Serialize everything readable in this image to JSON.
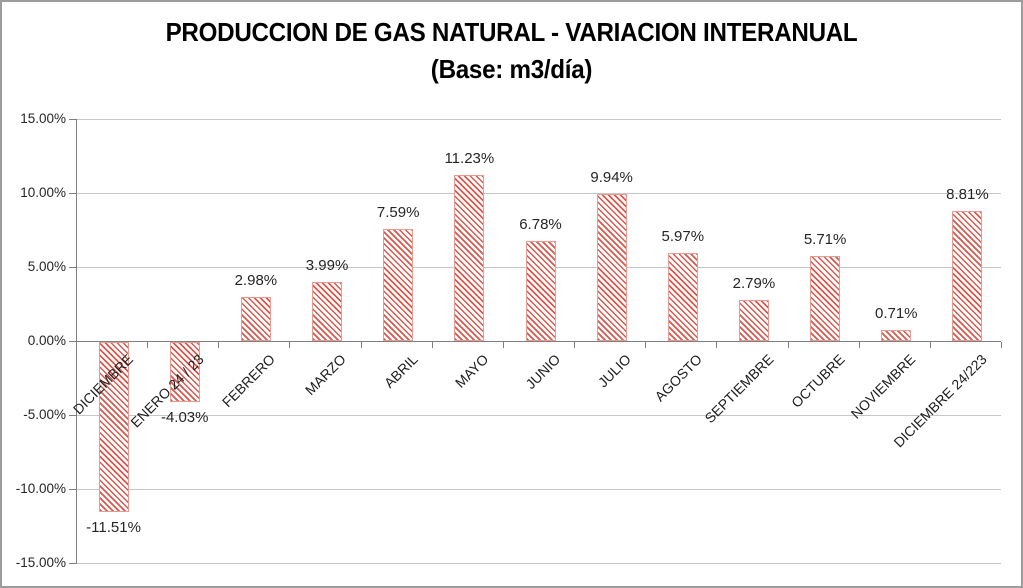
{
  "chart_data": {
    "type": "bar",
    "title": "PRODUCCION DE GAS NATURAL - VARIACION INTERANUAL",
    "subtitle": "(Base: m3/día)",
    "categories": [
      "DICIEMBRE",
      "ENERO 24 / 23",
      "FEBRERO",
      "MARZO",
      "ABRIL",
      "MAYO",
      "JUNIO",
      "JULIO",
      "AGOSTO",
      "SEPTIEMBRE",
      "OCTUBRE",
      "NOVIEMBRE",
      "DICIEMBRE 24/223"
    ],
    "values": [
      -11.51,
      -4.03,
      2.98,
      3.99,
      7.59,
      11.23,
      6.78,
      9.94,
      5.97,
      2.79,
      5.71,
      0.71,
      8.81
    ],
    "data_labels": [
      "-11.51%",
      "-4.03%",
      "2.98%",
      "3.99%",
      "7.59%",
      "11.23%",
      "6.78%",
      "9.94%",
      "5.97%",
      "2.79%",
      "5.71%",
      "0.71%",
      "8.81%"
    ],
    "xlabel": "",
    "ylabel": "",
    "ylim": [
      -15,
      15
    ],
    "y_tick_step": 5,
    "y_ticks": [
      {
        "value": 15,
        "label": "15.00%"
      },
      {
        "value": 10,
        "label": "10.00%"
      },
      {
        "value": 5,
        "label": "5.00%"
      },
      {
        "value": 0,
        "label": "0.00%"
      },
      {
        "value": -5,
        "label": "-5.00%"
      },
      {
        "value": -10,
        "label": "-10.00%"
      },
      {
        "value": -15,
        "label": "-15.00%"
      }
    ],
    "grid": true,
    "legend": false,
    "data_label_position": "outside-end",
    "category_label_rotation_deg": 45,
    "bar_fill_pattern": "light-downward-diagonal-stripes"
  },
  "colors": {
    "bar_stripe": "#dd574c",
    "bar_border": "#eb9a92",
    "bar_background": "#ffffff",
    "gridline": "#c6c6c6",
    "axis": "#7f7f7f",
    "label_text": "#262626",
    "title_text": "#000000",
    "chart_border": "#9c9c9c",
    "background": "#ffffff"
  }
}
